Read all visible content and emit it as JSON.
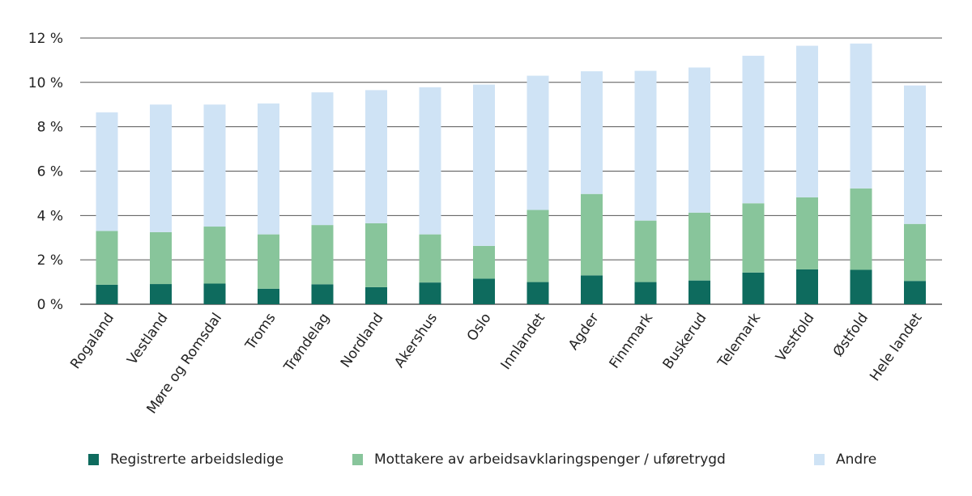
{
  "chart_data": {
    "type": "bar",
    "stacked": true,
    "title": "",
    "xlabel": "",
    "ylabel": "",
    "ylim": [
      0,
      12
    ],
    "yticks": [
      0,
      2,
      4,
      6,
      8,
      10,
      12
    ],
    "ytick_labels": [
      "0 %",
      "2 %",
      "4 %",
      "6 %",
      "8 %",
      "10 %",
      "12 %"
    ],
    "grid": true,
    "legend_position": "bottom",
    "categories": [
      "Rogaland",
      "Vestland",
      "Møre og Romsdal",
      "Troms",
      "Trøndelag",
      "Nordland",
      "Akershus",
      "Oslo",
      "Innlandet",
      "Agder",
      "Finnmark",
      "Buskerud",
      "Telemark",
      "Vestfold",
      "Østfold",
      "Hele landet"
    ],
    "series": [
      {
        "name": "Registrerte arbeidsledige",
        "color": "#0e6b5e",
        "values": [
          0.88,
          0.91,
          0.93,
          0.7,
          0.9,
          0.77,
          0.98,
          1.15,
          1.0,
          1.3,
          1.0,
          1.07,
          1.43,
          1.57,
          1.55,
          1.05
        ]
      },
      {
        "name": "Mottakere av arbeidsavklaringspenger / uføretrygd",
        "color": "#88c59b",
        "values": [
          2.42,
          2.34,
          2.57,
          2.45,
          2.67,
          2.88,
          2.17,
          1.48,
          3.25,
          3.67,
          2.77,
          3.06,
          3.12,
          3.25,
          3.67,
          2.57
        ]
      },
      {
        "name": "Andre",
        "color": "#cfe3f5",
        "values": [
          5.35,
          5.75,
          5.5,
          5.9,
          5.98,
          6.0,
          6.63,
          7.27,
          6.05,
          5.53,
          6.75,
          6.54,
          6.65,
          6.83,
          6.53,
          6.24
        ]
      }
    ],
    "totals": [
      8.65,
      9.0,
      9.0,
      9.05,
      9.55,
      9.65,
      9.78,
      9.9,
      10.3,
      10.5,
      10.52,
      10.67,
      11.2,
      11.65,
      11.75,
      9.86
    ]
  },
  "legend": {
    "items": [
      {
        "label": "Registrerte arbeidsledige",
        "color": "#0e6b5e"
      },
      {
        "label": "Mottakere av arbeidsavklaringspenger / uføretrygd",
        "color": "#88c59b"
      },
      {
        "label": "Andre",
        "color": "#cfe3f5"
      }
    ]
  }
}
